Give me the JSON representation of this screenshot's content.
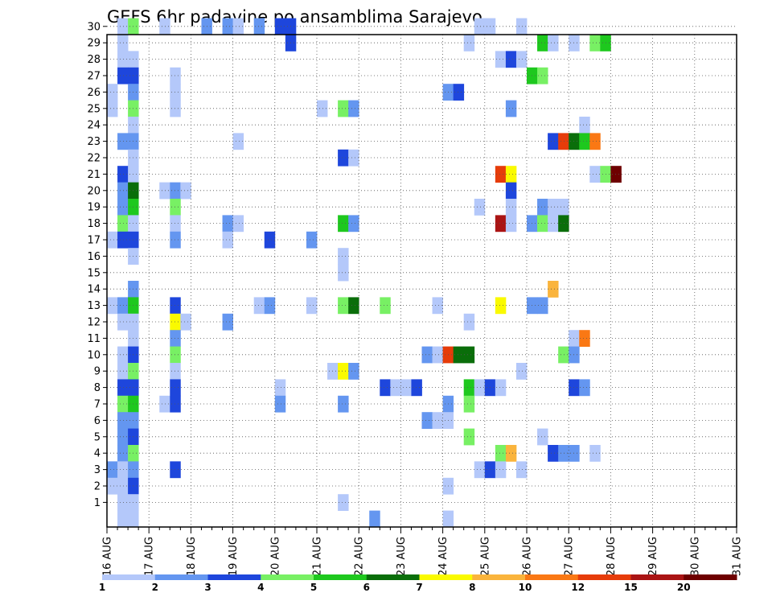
{
  "chart_data": {
    "type": "heatmap",
    "title": "GEFS 6hr padavine po ansamblima Sarajevo",
    "xlabel": "",
    "ylabel": "",
    "y_ticks": [
      "1",
      "2",
      "3",
      "4",
      "5",
      "6",
      "7",
      "8",
      "9",
      "10",
      "11",
      "12",
      "13",
      "14",
      "15",
      "16",
      "17",
      "18",
      "19",
      "20",
      "21",
      "22",
      "23",
      "24",
      "25",
      "26",
      "27",
      "28",
      "29",
      "30"
    ],
    "x_ticks": [
      "16 AUG",
      "17 AUG",
      "18 AUG",
      "19 AUG",
      "20 AUG",
      "21 AUG",
      "22 AUG",
      "23 AUG",
      "24 AUG",
      "25 AUG",
      "26 AUG",
      "27 AUG",
      "28 AUG",
      "29 AUG",
      "30 AUG",
      "31 AUG"
    ],
    "x_start": "2024-08-16T00",
    "step_hours": 6,
    "levels": [
      "1",
      "2",
      "3",
      "4",
      "5",
      "6",
      "7",
      "8",
      "10",
      "12",
      "15",
      "20"
    ],
    "colors": [
      "#b4c8fa",
      "#6496f0",
      "#1e46dc",
      "#78f064",
      "#1ec81e",
      "#0a6e0a",
      "#fafa00",
      "#fab43c",
      "#fa7814",
      "#e63c0a",
      "#aa1414",
      "#6e0000"
    ],
    "grid": true,
    "cells": [
      {
        "member": 30,
        "t": 1,
        "c": 1
      },
      {
        "member": 30,
        "t": 2,
        "c": 4
      },
      {
        "member": 30,
        "t": 5,
        "c": 1
      },
      {
        "member": 30,
        "t": 9,
        "c": 2
      },
      {
        "member": 30,
        "t": 11,
        "c": 2
      },
      {
        "member": 30,
        "t": 12,
        "c": 1
      },
      {
        "member": 30,
        "t": 14,
        "c": 2
      },
      {
        "member": 30,
        "t": 16,
        "c": 3
      },
      {
        "member": 30,
        "t": 17,
        "c": 3
      },
      {
        "member": 30,
        "t": 35,
        "c": 1
      },
      {
        "member": 30,
        "t": 36,
        "c": 1
      },
      {
        "member": 30,
        "t": 39,
        "c": 1
      },
      {
        "member": 29,
        "t": 1,
        "c": 1
      },
      {
        "member": 29,
        "t": 17,
        "c": 3
      },
      {
        "member": 29,
        "t": 34,
        "c": 1
      },
      {
        "member": 29,
        "t": 41,
        "c": 5
      },
      {
        "member": 29,
        "t": 42,
        "c": 1
      },
      {
        "member": 29,
        "t": 44,
        "c": 1
      },
      {
        "member": 29,
        "t": 46,
        "c": 4
      },
      {
        "member": 29,
        "t": 47,
        "c": 5
      },
      {
        "member": 28,
        "t": 1,
        "c": 1
      },
      {
        "member": 28,
        "t": 2,
        "c": 1
      },
      {
        "member": 28,
        "t": 37,
        "c": 1
      },
      {
        "member": 28,
        "t": 38,
        "c": 3
      },
      {
        "member": 28,
        "t": 39,
        "c": 1
      },
      {
        "member": 27,
        "t": 1,
        "c": 3
      },
      {
        "member": 27,
        "t": 2,
        "c": 3
      },
      {
        "member": 27,
        "t": 6,
        "c": 1
      },
      {
        "member": 27,
        "t": 40,
        "c": 5
      },
      {
        "member": 27,
        "t": 41,
        "c": 4
      },
      {
        "member": 26,
        "t": 0,
        "c": 1
      },
      {
        "member": 26,
        "t": 2,
        "c": 2
      },
      {
        "member": 26,
        "t": 6,
        "c": 1
      },
      {
        "member": 26,
        "t": 32,
        "c": 2
      },
      {
        "member": 26,
        "t": 33,
        "c": 3
      },
      {
        "member": 25,
        "t": 0,
        "c": 1
      },
      {
        "member": 25,
        "t": 2,
        "c": 4
      },
      {
        "member": 25,
        "t": 6,
        "c": 1
      },
      {
        "member": 25,
        "t": 20,
        "c": 1
      },
      {
        "member": 25,
        "t": 22,
        "c": 4
      },
      {
        "member": 25,
        "t": 23,
        "c": 2
      },
      {
        "member": 25,
        "t": 38,
        "c": 2
      },
      {
        "member": 24,
        "t": 2,
        "c": 1
      },
      {
        "member": 24,
        "t": 45,
        "c": 1
      },
      {
        "member": 23,
        "t": 1,
        "c": 2
      },
      {
        "member": 23,
        "t": 2,
        "c": 2
      },
      {
        "member": 23,
        "t": 12,
        "c": 1
      },
      {
        "member": 23,
        "t": 42,
        "c": 3
      },
      {
        "member": 23,
        "t": 43,
        "c": 10
      },
      {
        "member": 23,
        "t": 44,
        "c": 6
      },
      {
        "member": 23,
        "t": 45,
        "c": 5
      },
      {
        "member": 23,
        "t": 46,
        "c": 9
      },
      {
        "member": 22,
        "t": 2,
        "c": 1
      },
      {
        "member": 22,
        "t": 22,
        "c": 3
      },
      {
        "member": 22,
        "t": 23,
        "c": 1
      },
      {
        "member": 21,
        "t": 1,
        "c": 3
      },
      {
        "member": 21,
        "t": 2,
        "c": 1
      },
      {
        "member": 21,
        "t": 37,
        "c": 10
      },
      {
        "member": 21,
        "t": 38,
        "c": 7
      },
      {
        "member": 21,
        "t": 46,
        "c": 1
      },
      {
        "member": 21,
        "t": 47,
        "c": 4
      },
      {
        "member": 21,
        "t": 48,
        "c": 12
      },
      {
        "member": 20,
        "t": 1,
        "c": 2
      },
      {
        "member": 20,
        "t": 2,
        "c": 6
      },
      {
        "member": 20,
        "t": 5,
        "c": 1
      },
      {
        "member": 20,
        "t": 6,
        "c": 2
      },
      {
        "member": 20,
        "t": 7,
        "c": 1
      },
      {
        "member": 20,
        "t": 38,
        "c": 3
      },
      {
        "member": 19,
        "t": 1,
        "c": 2
      },
      {
        "member": 19,
        "t": 2,
        "c": 5
      },
      {
        "member": 19,
        "t": 6,
        "c": 4
      },
      {
        "member": 19,
        "t": 35,
        "c": 1
      },
      {
        "member": 19,
        "t": 38,
        "c": 1
      },
      {
        "member": 19,
        "t": 41,
        "c": 2
      },
      {
        "member": 19,
        "t": 42,
        "c": 1
      },
      {
        "member": 19,
        "t": 43,
        "c": 1
      },
      {
        "member": 18,
        "t": 1,
        "c": 4
      },
      {
        "member": 18,
        "t": 2,
        "c": 1
      },
      {
        "member": 18,
        "t": 6,
        "c": 1
      },
      {
        "member": 18,
        "t": 11,
        "c": 2
      },
      {
        "member": 18,
        "t": 12,
        "c": 1
      },
      {
        "member": 18,
        "t": 22,
        "c": 5
      },
      {
        "member": 18,
        "t": 23,
        "c": 2
      },
      {
        "member": 18,
        "t": 37,
        "c": 11
      },
      {
        "member": 18,
        "t": 38,
        "c": 1
      },
      {
        "member": 18,
        "t": 40,
        "c": 2
      },
      {
        "member": 18,
        "t": 41,
        "c": 4
      },
      {
        "member": 18,
        "t": 42,
        "c": 1
      },
      {
        "member": 18,
        "t": 43,
        "c": 6
      },
      {
        "member": 17,
        "t": 0,
        "c": 1
      },
      {
        "member": 17,
        "t": 1,
        "c": 3
      },
      {
        "member": 17,
        "t": 2,
        "c": 3
      },
      {
        "member": 17,
        "t": 6,
        "c": 2
      },
      {
        "member": 17,
        "t": 11,
        "c": 1
      },
      {
        "member": 17,
        "t": 15,
        "c": 3
      },
      {
        "member": 17,
        "t": 19,
        "c": 2
      },
      {
        "member": 16,
        "t": 2,
        "c": 1
      },
      {
        "member": 16,
        "t": 22,
        "c": 1
      },
      {
        "member": 15,
        "t": 22,
        "c": 1
      },
      {
        "member": 14,
        "t": 2,
        "c": 2
      },
      {
        "member": 14,
        "t": 42,
        "c": 8
      },
      {
        "member": 13,
        "t": 0,
        "c": 1
      },
      {
        "member": 13,
        "t": 1,
        "c": 2
      },
      {
        "member": 13,
        "t": 2,
        "c": 5
      },
      {
        "member": 13,
        "t": 6,
        "c": 3
      },
      {
        "member": 13,
        "t": 14,
        "c": 1
      },
      {
        "member": 13,
        "t": 15,
        "c": 2
      },
      {
        "member": 13,
        "t": 19,
        "c": 1
      },
      {
        "member": 13,
        "t": 22,
        "c": 4
      },
      {
        "member": 13,
        "t": 23,
        "c": 6
      },
      {
        "member": 13,
        "t": 26,
        "c": 4
      },
      {
        "member": 13,
        "t": 31,
        "c": 1
      },
      {
        "member": 13,
        "t": 37,
        "c": 7
      },
      {
        "member": 13,
        "t": 40,
        "c": 2
      },
      {
        "member": 13,
        "t": 41,
        "c": 2
      },
      {
        "member": 12,
        "t": 1,
        "c": 1
      },
      {
        "member": 12,
        "t": 2,
        "c": 1
      },
      {
        "member": 12,
        "t": 6,
        "c": 7
      },
      {
        "member": 12,
        "t": 7,
        "c": 1
      },
      {
        "member": 12,
        "t": 11,
        "c": 2
      },
      {
        "member": 12,
        "t": 34,
        "c": 1
      },
      {
        "member": 11,
        "t": 2,
        "c": 1
      },
      {
        "member": 11,
        "t": 6,
        "c": 2
      },
      {
        "member": 11,
        "t": 44,
        "c": 1
      },
      {
        "member": 11,
        "t": 45,
        "c": 9
      },
      {
        "member": 10,
        "t": 1,
        "c": 1
      },
      {
        "member": 10,
        "t": 2,
        "c": 3
      },
      {
        "member": 10,
        "t": 6,
        "c": 4
      },
      {
        "member": 10,
        "t": 30,
        "c": 2
      },
      {
        "member": 10,
        "t": 31,
        "c": 1
      },
      {
        "member": 10,
        "t": 32,
        "c": 10
      },
      {
        "member": 10,
        "t": 33,
        "c": 6
      },
      {
        "member": 10,
        "t": 34,
        "c": 6
      },
      {
        "member": 10,
        "t": 43,
        "c": 4
      },
      {
        "member": 10,
        "t": 44,
        "c": 2
      },
      {
        "member": 9,
        "t": 1,
        "c": 1
      },
      {
        "member": 9,
        "t": 2,
        "c": 4
      },
      {
        "member": 9,
        "t": 6,
        "c": 1
      },
      {
        "member": 9,
        "t": 21,
        "c": 1
      },
      {
        "member": 9,
        "t": 22,
        "c": 7
      },
      {
        "member": 9,
        "t": 23,
        "c": 2
      },
      {
        "member": 9,
        "t": 39,
        "c": 1
      },
      {
        "member": 8,
        "t": 1,
        "c": 3
      },
      {
        "member": 8,
        "t": 2,
        "c": 3
      },
      {
        "member": 8,
        "t": 6,
        "c": 3
      },
      {
        "member": 8,
        "t": 16,
        "c": 1
      },
      {
        "member": 8,
        "t": 26,
        "c": 3
      },
      {
        "member": 8,
        "t": 27,
        "c": 1
      },
      {
        "member": 8,
        "t": 28,
        "c": 1
      },
      {
        "member": 8,
        "t": 29,
        "c": 3
      },
      {
        "member": 8,
        "t": 34,
        "c": 5
      },
      {
        "member": 8,
        "t": 35,
        "c": 1
      },
      {
        "member": 8,
        "t": 36,
        "c": 3
      },
      {
        "member": 8,
        "t": 37,
        "c": 1
      },
      {
        "member": 8,
        "t": 44,
        "c": 3
      },
      {
        "member": 8,
        "t": 45,
        "c": 2
      },
      {
        "member": 7,
        "t": 1,
        "c": 4
      },
      {
        "member": 7,
        "t": 2,
        "c": 5
      },
      {
        "member": 7,
        "t": 5,
        "c": 1
      },
      {
        "member": 7,
        "t": 6,
        "c": 3
      },
      {
        "member": 7,
        "t": 16,
        "c": 2
      },
      {
        "member": 7,
        "t": 22,
        "c": 2
      },
      {
        "member": 7,
        "t": 32,
        "c": 2
      },
      {
        "member": 7,
        "t": 34,
        "c": 4
      },
      {
        "member": 6,
        "t": 1,
        "c": 2
      },
      {
        "member": 6,
        "t": 2,
        "c": 2
      },
      {
        "member": 6,
        "t": 30,
        "c": 2
      },
      {
        "member": 6,
        "t": 31,
        "c": 1
      },
      {
        "member": 6,
        "t": 32,
        "c": 1
      },
      {
        "member": 5,
        "t": 1,
        "c": 2
      },
      {
        "member": 5,
        "t": 2,
        "c": 3
      },
      {
        "member": 5,
        "t": 34,
        "c": 4
      },
      {
        "member": 5,
        "t": 41,
        "c": 1
      },
      {
        "member": 4,
        "t": 1,
        "c": 2
      },
      {
        "member": 4,
        "t": 2,
        "c": 4
      },
      {
        "member": 4,
        "t": 37,
        "c": 4
      },
      {
        "member": 4,
        "t": 38,
        "c": 8
      },
      {
        "member": 4,
        "t": 42,
        "c": 3
      },
      {
        "member": 4,
        "t": 43,
        "c": 2
      },
      {
        "member": 4,
        "t": 44,
        "c": 2
      },
      {
        "member": 4,
        "t": 46,
        "c": 1
      },
      {
        "member": 3,
        "t": 0,
        "c": 2
      },
      {
        "member": 3,
        "t": 1,
        "c": 1
      },
      {
        "member": 3,
        "t": 2,
        "c": 2
      },
      {
        "member": 3,
        "t": 6,
        "c": 3
      },
      {
        "member": 3,
        "t": 35,
        "c": 1
      },
      {
        "member": 3,
        "t": 36,
        "c": 3
      },
      {
        "member": 3,
        "t": 37,
        "c": 1
      },
      {
        "member": 3,
        "t": 39,
        "c": 1
      },
      {
        "member": 2,
        "t": 0,
        "c": 1
      },
      {
        "member": 2,
        "t": 1,
        "c": 1
      },
      {
        "member": 2,
        "t": 2,
        "c": 3
      },
      {
        "member": 2,
        "t": 32,
        "c": 1
      },
      {
        "member": 1,
        "t": 1,
        "c": 1
      },
      {
        "member": 1,
        "t": 2,
        "c": 1
      },
      {
        "member": 1,
        "t": 22,
        "c": 1
      },
      {
        "member": 0,
        "t": 1,
        "c": 1
      },
      {
        "member": 0,
        "t": 2,
        "c": 1
      },
      {
        "member": 0,
        "t": 25,
        "c": 2
      },
      {
        "member": 0,
        "t": 32,
        "c": 1
      }
    ]
  }
}
